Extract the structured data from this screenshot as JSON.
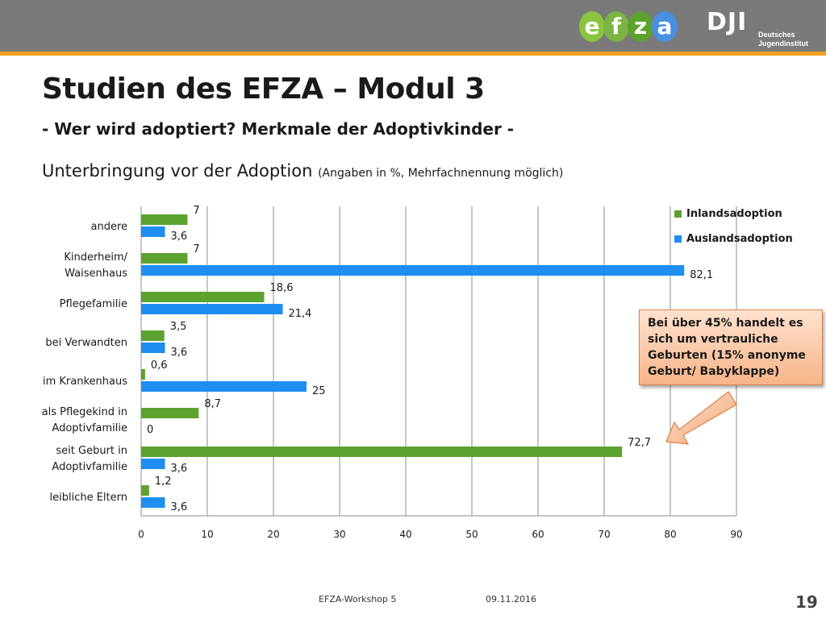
{
  "header": {
    "logo_letters": [
      "e",
      "f",
      "z",
      "a"
    ],
    "logo_colors": [
      "#8bc53f",
      "#7cb342",
      "#5ca22f",
      "#4a90e2"
    ],
    "institute_mark": "DJI",
    "institute_name_line1": "Deutsches",
    "institute_name_line2": "Jugendinstitut",
    "bar_color": "#7a7a7a",
    "accent_color": "#f0a020"
  },
  "slide": {
    "title": "Studien des EFZA – Modul 3",
    "subtitle": "- Wer wird adoptiert? Merkmale der Adoptivkinder -",
    "heading": "Unterbringung vor der Adoption",
    "heading_note": "(Angaben in %, Mehrfachnennung möglich)"
  },
  "chart_data": {
    "type": "bar",
    "orientation": "horizontal",
    "categories": [
      [
        "andere"
      ],
      [
        "Kinderheim/",
        "Waisenhaus"
      ],
      [
        "Pflegefamilie"
      ],
      [
        "bei Verwandten"
      ],
      [
        "im Krankenhaus"
      ],
      [
        "als Pflegekind in",
        "Adoptivfamilie"
      ],
      [
        "seit Geburt in",
        "Adoptivfamilie"
      ],
      [
        "leibliche Eltern"
      ]
    ],
    "series": [
      {
        "name": "Inlandsadoption",
        "color": "#5ca22f",
        "values": [
          7,
          7,
          18.6,
          3.5,
          0.6,
          8.7,
          72.7,
          1.2
        ],
        "labels": [
          "7",
          "7",
          "18,6",
          "3,5",
          "0,6",
          "8,7",
          "72,7",
          "1,2"
        ]
      },
      {
        "name": "Auslandsadoption",
        "color": "#1f8ef1",
        "values": [
          3.6,
          82.1,
          21.4,
          3.6,
          25,
          0,
          3.6,
          3.6
        ],
        "labels": [
          "3,6",
          "82,1",
          "21,4",
          "3,6",
          "25",
          "0",
          "3,6",
          "3,6"
        ]
      }
    ],
    "xlim": [
      0,
      90
    ],
    "xticks": [
      0,
      10,
      20,
      30,
      40,
      50,
      60,
      70,
      80,
      90
    ],
    "grid": true,
    "legend_position": "top-right"
  },
  "callout": {
    "text": "Bei über 45% handelt es sich um vertrauliche Geburten (15% anonyme Geburt/ Babyklappe)"
  },
  "footer": {
    "event": "EFZA-Workshop 5",
    "date": "09.11.2016",
    "page": "19"
  }
}
